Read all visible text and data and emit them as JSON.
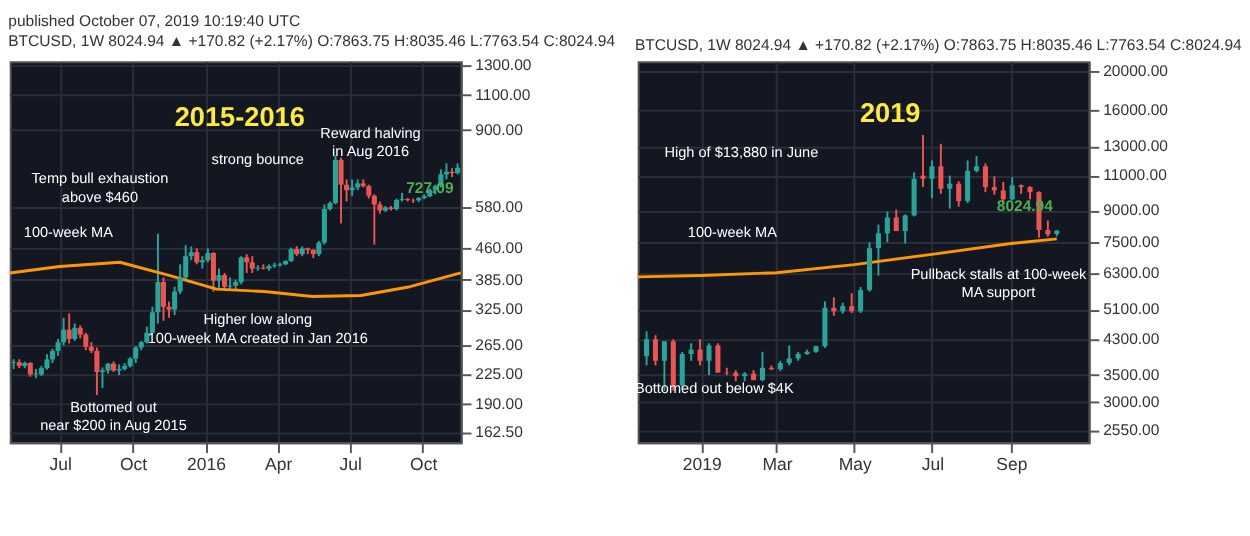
{
  "chart_data": [
    {
      "type": "candlestick",
      "title": "2015-2016",
      "subtitle": "BTCUSD, 1W 8024.94 ▲ +170.82 (+2.17%) O:7863.75 H:8035.46 L:7763.54 C:8024.94",
      "log": true,
      "grid": true,
      "xlim": [
        "2015-04-29",
        "2016-11-18"
      ],
      "xticks": [
        {
          "value": "2015-07-01",
          "label": "Jul"
        },
        {
          "value": "2015-10-01",
          "label": "Oct"
        },
        {
          "value": "2016-01-01",
          "label": "2016"
        },
        {
          "value": "2016-04-01",
          "label": "Apr"
        },
        {
          "value": "2016-07-01",
          "label": "Jul"
        },
        {
          "value": "2016-10-01",
          "label": "Oct"
        }
      ],
      "ylim": [
        153,
        1330
      ],
      "yticks": [
        {
          "value": 162.5,
          "label": "162.50"
        },
        {
          "value": 190,
          "label": "190.00"
        },
        {
          "value": 225,
          "label": "225.00"
        },
        {
          "value": 265,
          "label": "265.00"
        },
        {
          "value": 325,
          "label": "325.00"
        },
        {
          "value": 385,
          "label": "385.00"
        },
        {
          "value": 460,
          "label": "460.00"
        },
        {
          "value": 580,
          "label": "580.00"
        },
        {
          "value": 900,
          "label": "900.00"
        },
        {
          "value": 1100,
          "label": "1100.00"
        },
        {
          "value": 1300,
          "label": "1300.00"
        }
      ],
      "x": [
        "2015-05-04",
        "2015-05-11",
        "2015-05-18",
        "2015-05-25",
        "2015-06-01",
        "2015-06-08",
        "2015-06-15",
        "2015-06-22",
        "2015-06-29",
        "2015-07-06",
        "2015-07-13",
        "2015-07-20",
        "2015-07-27",
        "2015-08-03",
        "2015-08-10",
        "2015-08-17",
        "2015-08-24",
        "2015-08-31",
        "2015-09-07",
        "2015-09-14",
        "2015-09-21",
        "2015-09-28",
        "2015-10-05",
        "2015-10-12",
        "2015-10-19",
        "2015-10-26",
        "2015-11-02",
        "2015-11-09",
        "2015-11-16",
        "2015-11-23",
        "2015-11-30",
        "2015-12-07",
        "2015-12-14",
        "2015-12-21",
        "2015-12-28",
        "2016-01-04",
        "2016-01-11",
        "2016-01-18",
        "2016-01-25",
        "2016-02-01",
        "2016-02-08",
        "2016-02-15",
        "2016-02-22",
        "2016-02-29",
        "2016-03-07",
        "2016-03-14",
        "2016-03-21",
        "2016-03-28",
        "2016-04-04",
        "2016-04-11",
        "2016-04-18",
        "2016-04-25",
        "2016-05-02",
        "2016-05-09",
        "2016-05-16",
        "2016-05-23",
        "2016-05-30",
        "2016-06-06",
        "2016-06-13",
        "2016-06-20",
        "2016-06-27",
        "2016-07-04",
        "2016-07-11",
        "2016-07-18",
        "2016-07-25",
        "2016-08-01",
        "2016-08-08",
        "2016-08-15",
        "2016-08-22",
        "2016-08-29",
        "2016-09-05",
        "2016-09-12",
        "2016-09-19",
        "2016-09-26",
        "2016-10-03",
        "2016-10-10",
        "2016-10-17",
        "2016-10-24",
        "2016-10-31",
        "2016-11-07",
        "2016-11-14"
      ],
      "ohlc": [
        [
          240,
          245,
          232,
          241
        ],
        [
          241,
          245,
          233,
          236
        ],
        [
          236,
          242,
          233,
          240
        ],
        [
          240,
          241,
          222,
          225
        ],
        [
          225,
          232,
          220,
          226
        ],
        [
          225,
          236,
          223,
          233
        ],
        [
          233,
          252,
          231,
          245
        ],
        [
          245,
          260,
          240,
          257
        ],
        [
          257,
          275,
          250,
          270
        ],
        [
          270,
          310,
          265,
          290
        ],
        [
          290,
          318,
          268,
          275
        ],
        [
          275,
          300,
          272,
          293
        ],
        [
          293,
          297,
          276,
          282
        ],
        [
          282,
          285,
          258,
          263
        ],
        [
          263,
          270,
          254,
          257
        ],
        [
          257,
          262,
          200,
          228
        ],
        [
          228,
          234,
          208,
          230
        ],
        [
          230,
          240,
          226,
          239
        ],
        [
          239,
          242,
          228,
          230
        ],
        [
          230,
          238,
          224,
          232
        ],
        [
          232,
          240,
          230,
          236
        ],
        [
          236,
          248,
          234,
          246
        ],
        [
          246,
          264,
          240,
          262
        ],
        [
          262,
          272,
          258,
          270
        ],
        [
          270,
          295,
          268,
          285
        ],
        [
          285,
          330,
          283,
          320
        ],
        [
          320,
          500,
          300,
          380
        ],
        [
          380,
          390,
          305,
          330
        ],
        [
          330,
          340,
          310,
          325
        ],
        [
          325,
          370,
          315,
          360
        ],
        [
          360,
          420,
          355,
          390
        ],
        [
          390,
          468,
          385,
          440
        ],
        [
          440,
          465,
          430,
          450
        ],
        [
          450,
          460,
          420,
          425
        ],
        [
          425,
          440,
          410,
          430
        ],
        [
          430,
          460,
          425,
          448
        ],
        [
          448,
          450,
          360,
          383
        ],
        [
          383,
          410,
          365,
          395
        ],
        [
          395,
          400,
          365,
          370
        ],
        [
          370,
          390,
          362,
          372
        ],
        [
          372,
          385,
          365,
          380
        ],
        [
          380,
          440,
          375,
          437
        ],
        [
          437,
          445,
          400,
          425
        ],
        [
          425,
          440,
          400,
          410
        ],
        [
          410,
          418,
          405,
          412
        ],
        [
          412,
          420,
          408,
          410
        ],
        [
          410,
          420,
          405,
          416
        ],
        [
          416,
          424,
          412,
          418
        ],
        [
          418,
          424,
          415,
          420
        ],
        [
          420,
          430,
          418,
          428
        ],
        [
          428,
          462,
          426,
          458
        ],
        [
          458,
          466,
          440,
          445
        ],
        [
          445,
          465,
          440,
          460
        ],
        [
          460,
          462,
          445,
          456
        ],
        [
          456,
          458,
          435,
          445
        ],
        [
          445,
          480,
          440,
          475
        ],
        [
          475,
          590,
          470,
          575
        ],
        [
          575,
          600,
          570,
          595
        ],
        [
          595,
          780,
          590,
          760
        ],
        [
          760,
          770,
          530,
          660
        ],
        [
          660,
          680,
          600,
          640
        ],
        [
          640,
          680,
          620,
          650
        ],
        [
          650,
          680,
          640,
          665
        ],
        [
          665,
          680,
          650,
          655
        ],
        [
          655,
          660,
          610,
          620
        ],
        [
          620,
          625,
          470,
          590
        ],
        [
          590,
          600,
          560,
          570
        ],
        [
          570,
          585,
          565,
          580
        ],
        [
          580,
          585,
          570,
          575
        ],
        [
          575,
          610,
          570,
          605
        ],
        [
          605,
          630,
          600,
          608
        ],
        [
          608,
          612,
          600,
          605
        ],
        [
          605,
          610,
          595,
          604
        ],
        [
          604,
          615,
          598,
          612
        ],
        [
          612,
          625,
          608,
          618
        ],
        [
          618,
          645,
          615,
          640
        ],
        [
          640,
          660,
          625,
          655
        ],
        [
          655,
          720,
          650,
          700
        ],
        [
          700,
          745,
          680,
          710
        ],
        [
          710,
          725,
          690,
          705
        ],
        [
          705,
          745,
          700,
          727.09
        ]
      ],
      "series": [
        {
          "type": "line",
          "color": "#ff9800",
          "x": [
            "2015-04-29",
            "2015-07-01",
            "2015-09-15",
            "2015-11-15",
            "2016-01-15",
            "2016-03-15",
            "2016-05-15",
            "2016-07-15",
            "2016-09-15",
            "2016-11-18"
          ],
          "values": [
            400,
            415,
            425,
            395,
            365,
            360,
            350,
            352,
            370,
            400
          ]
        }
      ],
      "annotations": [
        "published October 07, 2019 10:19:40 UTC",
        "Temp bull exhaustion\nabove $460",
        "strong bounce",
        "Reward halving\nin Aug 2016",
        "100-week MA",
        "Higher low along\n100-week MA created in Jan 2016",
        "Bottomed out\nnear $200 in Aug  2015",
        {
          "text": "727.09",
          "x": "2016-11-14",
          "y": 727.09
        }
      ]
    },
    {
      "type": "candlestick",
      "title": "2019",
      "subtitle": "BTCUSD, 1W 8024.94 ▲ +170.82 (+2.17%) O:7863.75 H:8035.46 L:7763.54 C:8024.94",
      "log": true,
      "grid": true,
      "xlim": [
        "2018-11-12",
        "2019-11-01"
      ],
      "xticks": [
        {
          "value": "2019-01-01",
          "label": "2019"
        },
        {
          "value": "2019-03-01",
          "label": "Mar"
        },
        {
          "value": "2019-05-01",
          "label": "May"
        },
        {
          "value": "2019-07-01",
          "label": "Jul"
        },
        {
          "value": "2019-09-01",
          "label": "Sep"
        }
      ],
      "ylim": [
        2380,
        21200
      ],
      "yticks": [
        {
          "value": 2550,
          "label": "2550.00"
        },
        {
          "value": 3000,
          "label": "3000.00"
        },
        {
          "value": 3500,
          "label": "3500.00"
        },
        {
          "value": 4300,
          "label": "4300.00"
        },
        {
          "value": 5100,
          "label": "5100.00"
        },
        {
          "value": 6300,
          "label": "6300.00"
        },
        {
          "value": 7500,
          "label": "7500.00"
        },
        {
          "value": 9000,
          "label": "9000.00"
        },
        {
          "value": 11000,
          "label": "11000.00"
        },
        {
          "value": 13000,
          "label": "13000.00"
        },
        {
          "value": 16000,
          "label": "16000.00"
        },
        {
          "value": 20000,
          "label": "20000.00"
        }
      ],
      "x": [
        "2018-11-19",
        "2018-11-26",
        "2018-12-03",
        "2018-12-10",
        "2018-12-17",
        "2018-12-24",
        "2018-12-31",
        "2019-01-07",
        "2019-01-14",
        "2019-01-21",
        "2019-01-28",
        "2019-02-04",
        "2019-02-11",
        "2019-02-18",
        "2019-02-25",
        "2019-03-04",
        "2019-03-11",
        "2019-03-18",
        "2019-03-25",
        "2019-04-01",
        "2019-04-08",
        "2019-04-15",
        "2019-04-22",
        "2019-04-29",
        "2019-05-06",
        "2019-05-13",
        "2019-05-20",
        "2019-05-27",
        "2019-06-03",
        "2019-06-10",
        "2019-06-17",
        "2019-06-24",
        "2019-07-01",
        "2019-07-08",
        "2019-07-15",
        "2019-07-22",
        "2019-07-29",
        "2019-08-05",
        "2019-08-12",
        "2019-08-19",
        "2019-08-26",
        "2019-09-02",
        "2019-09-09",
        "2019-09-16",
        "2019-09-23",
        "2019-09-30",
        "2019-10-07"
      ],
      "ohlc": [
        [
          3900,
          4500,
          3700,
          4300
        ],
        [
          4300,
          4400,
          3700,
          3800
        ],
        [
          3800,
          4250,
          3200,
          4250
        ],
        [
          4250,
          4300,
          3200,
          3300
        ],
        [
          3300,
          4000,
          3250,
          3950
        ],
        [
          3950,
          4200,
          3800,
          4050
        ],
        [
          4050,
          4300,
          3700,
          3800
        ],
        [
          3800,
          4200,
          3500,
          4150
        ],
        [
          4150,
          4200,
          3550,
          3550
        ],
        [
          3550,
          3650,
          3500,
          3540
        ],
        [
          3550,
          3600,
          3380,
          3480
        ],
        [
          3480,
          3560,
          3380,
          3530
        ],
        [
          3530,
          3600,
          3400,
          3400
        ],
        [
          3400,
          4000,
          3380,
          3650
        ],
        [
          3650,
          3700,
          3600,
          3620
        ],
        [
          3620,
          3800,
          3580,
          3750
        ],
        [
          3750,
          4150,
          3700,
          3850
        ],
        [
          3850,
          4000,
          3800,
          3950
        ],
        [
          3950,
          4050,
          3930,
          4000
        ],
        [
          4000,
          4150,
          3980,
          4130
        ],
        [
          4130,
          5350,
          4090,
          5150
        ],
        [
          5150,
          5470,
          4920,
          5050
        ],
        [
          5050,
          5300,
          4980,
          5200
        ],
        [
          5200,
          5600,
          5000,
          5050
        ],
        [
          5050,
          5800,
          5000,
          5700
        ],
        [
          5700,
          7500,
          5650,
          7250
        ],
        [
          7250,
          8300,
          6200,
          7900
        ],
        [
          7900,
          8950,
          7500,
          8650
        ],
        [
          8650,
          9050,
          8000,
          8000
        ],
        [
          8000,
          8800,
          7450,
          8750
        ],
        [
          8750,
          11200,
          8700,
          10800
        ],
        [
          11000,
          13880,
          10300,
          10800
        ],
        [
          10800,
          12000,
          9650,
          11600
        ],
        [
          11600,
          13200,
          9900,
          10200
        ],
        [
          10200,
          11000,
          9100,
          10500
        ],
        [
          10500,
          10650,
          9200,
          9500
        ],
        [
          9500,
          12000,
          9400,
          11300
        ],
        [
          11300,
          12300,
          11200,
          11600
        ],
        [
          11600,
          11800,
          10000,
          10300
        ],
        [
          10300,
          10950,
          9850,
          10100
        ],
        [
          10100,
          10600,
          9350,
          9600
        ],
        [
          9600,
          10900,
          9550,
          10400
        ],
        [
          10400,
          10450,
          9900,
          10300
        ],
        [
          10300,
          10350,
          9600,
          10000
        ],
        [
          10000,
          10050,
          7700,
          8050
        ],
        [
          8050,
          8500,
          7750,
          7850
        ],
        [
          7863.75,
          8035.46,
          7763.54,
          8024.94
        ]
      ],
      "series": [
        {
          "type": "line",
          "color": "#ff9800",
          "x": [
            "2018-11-12",
            "2019-01-01",
            "2019-03-01",
            "2019-05-01",
            "2019-07-01",
            "2019-09-01",
            "2019-10-07"
          ],
          "values": [
            6150,
            6200,
            6300,
            6600,
            7000,
            7450,
            7650
          ]
        }
      ],
      "annotations": [
        "High of $13,880 in June",
        "100-week MA",
        "Pullback stalls at 100-week\nMA support",
        "Bottomed out below $4K",
        {
          "text": "8024.94",
          "x": "2019-10-07",
          "y": 8024.94
        }
      ]
    }
  ]
}
